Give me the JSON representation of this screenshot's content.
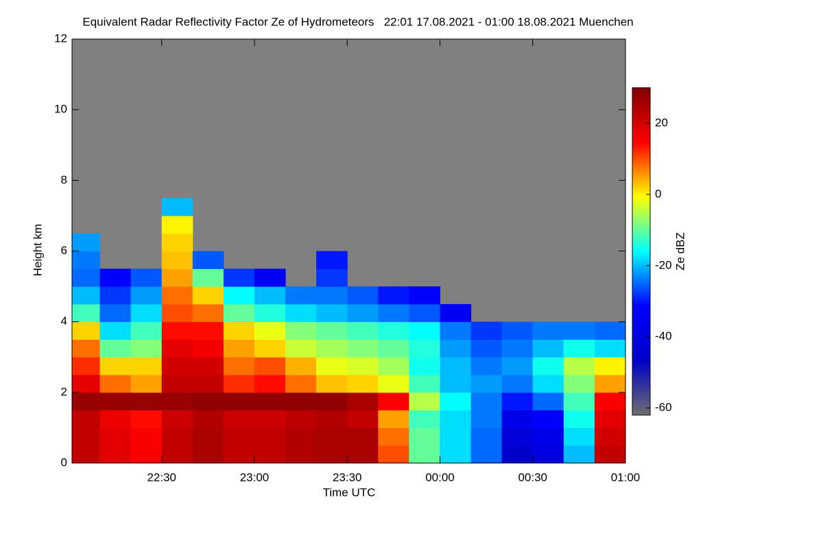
{
  "chart_data": {
    "type": "heatmap",
    "title": "Equivalent Radar Reflectivity Factor Ze of Hydrometeors   22:01 17.08.2021 - 01:00 18.08.2021 Muenchen",
    "x_label": "Time UTC",
    "y_label": "Height km",
    "colorbar_label": "Ze dBZ",
    "xlim": [
      1,
      180
    ],
    "xticks": [
      {
        "value": 30,
        "label": "22:30"
      },
      {
        "value": 60,
        "label": "23:00"
      },
      {
        "value": 90,
        "label": "23:30"
      },
      {
        "value": 120,
        "label": "00:00"
      },
      {
        "value": 150,
        "label": "00:30"
      },
      {
        "value": 180,
        "label": "01:00"
      }
    ],
    "ylim": [
      0,
      12
    ],
    "yticks": [
      0,
      2,
      4,
      6,
      8,
      10,
      12
    ],
    "zlim": [
      -62,
      30
    ],
    "zticks": [
      -60,
      -40,
      -20,
      0,
      20
    ],
    "colorscale": [
      "#6e6e6e",
      "#0000c8",
      "#0000ff",
      "#00ffff",
      "#ffff00",
      "#ff0000",
      "#800000"
    ],
    "background": "#808080",
    "x_bins": [
      1,
      10,
      20,
      30,
      40,
      50,
      60,
      70,
      80,
      90,
      100,
      110,
      120,
      130,
      140,
      150,
      160,
      170,
      180
    ],
    "y_bins": [
      0,
      0.5,
      1,
      1.5,
      2,
      2.5,
      3,
      3.5,
      4,
      4.5,
      5,
      5.5,
      6,
      6.5,
      7,
      7.5
    ],
    "z": [
      [
        22,
        18,
        15,
        22,
        25,
        22,
        22,
        24,
        25,
        25,
        10,
        -10,
        -18,
        -25,
        -45,
        -40,
        -20,
        22
      ],
      [
        22,
        18,
        15,
        22,
        25,
        22,
        22,
        24,
        25,
        25,
        8,
        -10,
        -18,
        -25,
        -42,
        -38,
        -18,
        20
      ],
      [
        22,
        17,
        14,
        21,
        24,
        21,
        21,
        23,
        24,
        22,
        5,
        -12,
        -18,
        -24,
        -38,
        -32,
        -15,
        18
      ],
      [
        27,
        27,
        27,
        27,
        28,
        28,
        28,
        28,
        28,
        25,
        15,
        -5,
        -16,
        -24,
        -30,
        -25,
        -12,
        15
      ],
      [
        18,
        8,
        5,
        22,
        22,
        12,
        14,
        8,
        3,
        2,
        -2,
        -12,
        -20,
        -22,
        -24,
        -18,
        -8,
        5
      ],
      [
        12,
        2,
        2,
        20,
        20,
        8,
        10,
        4,
        -2,
        -3,
        -6,
        -15,
        -20,
        -24,
        -22,
        -15,
        -5,
        0
      ],
      [
        8,
        -10,
        -8,
        18,
        16,
        5,
        2,
        -4,
        -6,
        -8,
        -10,
        -14,
        -22,
        -26,
        -24,
        -20,
        -15,
        -18
      ],
      [
        2,
        -18,
        -12,
        14,
        14,
        2,
        -2,
        -8,
        -10,
        -12,
        -14,
        -16,
        -24,
        -28,
        -26,
        -24,
        -24,
        -25
      ],
      [
        -12,
        -25,
        -18,
        10,
        8,
        -10,
        -14,
        -18,
        -20,
        -22,
        -24,
        -26,
        -34,
        null,
        null,
        null,
        null,
        null
      ],
      [
        -20,
        -28,
        -22,
        8,
        2,
        -16,
        -20,
        -24,
        -24,
        -26,
        -30,
        -32,
        null,
        null,
        null,
        null,
        null,
        null
      ],
      [
        -25,
        -32,
        -26,
        5,
        -10,
        -28,
        -34,
        null,
        -28,
        null,
        null,
        null,
        null,
        null,
        null,
        null,
        null,
        null
      ],
      [
        -24,
        null,
        null,
        3,
        -26,
        null,
        null,
        null,
        -30,
        null,
        null,
        null,
        null,
        null,
        null,
        null,
        null,
        null
      ],
      [
        -22,
        null,
        null,
        2,
        null,
        null,
        null,
        null,
        null,
        null,
        null,
        null,
        null,
        null,
        null,
        null,
        null,
        null
      ],
      [
        null,
        null,
        null,
        0,
        null,
        null,
        null,
        null,
        null,
        null,
        null,
        null,
        null,
        null,
        null,
        null,
        null,
        null
      ],
      [
        null,
        null,
        null,
        -20,
        null,
        null,
        null,
        null,
        null,
        null,
        null,
        null,
        null,
        null,
        null,
        null,
        null,
        null
      ]
    ]
  }
}
